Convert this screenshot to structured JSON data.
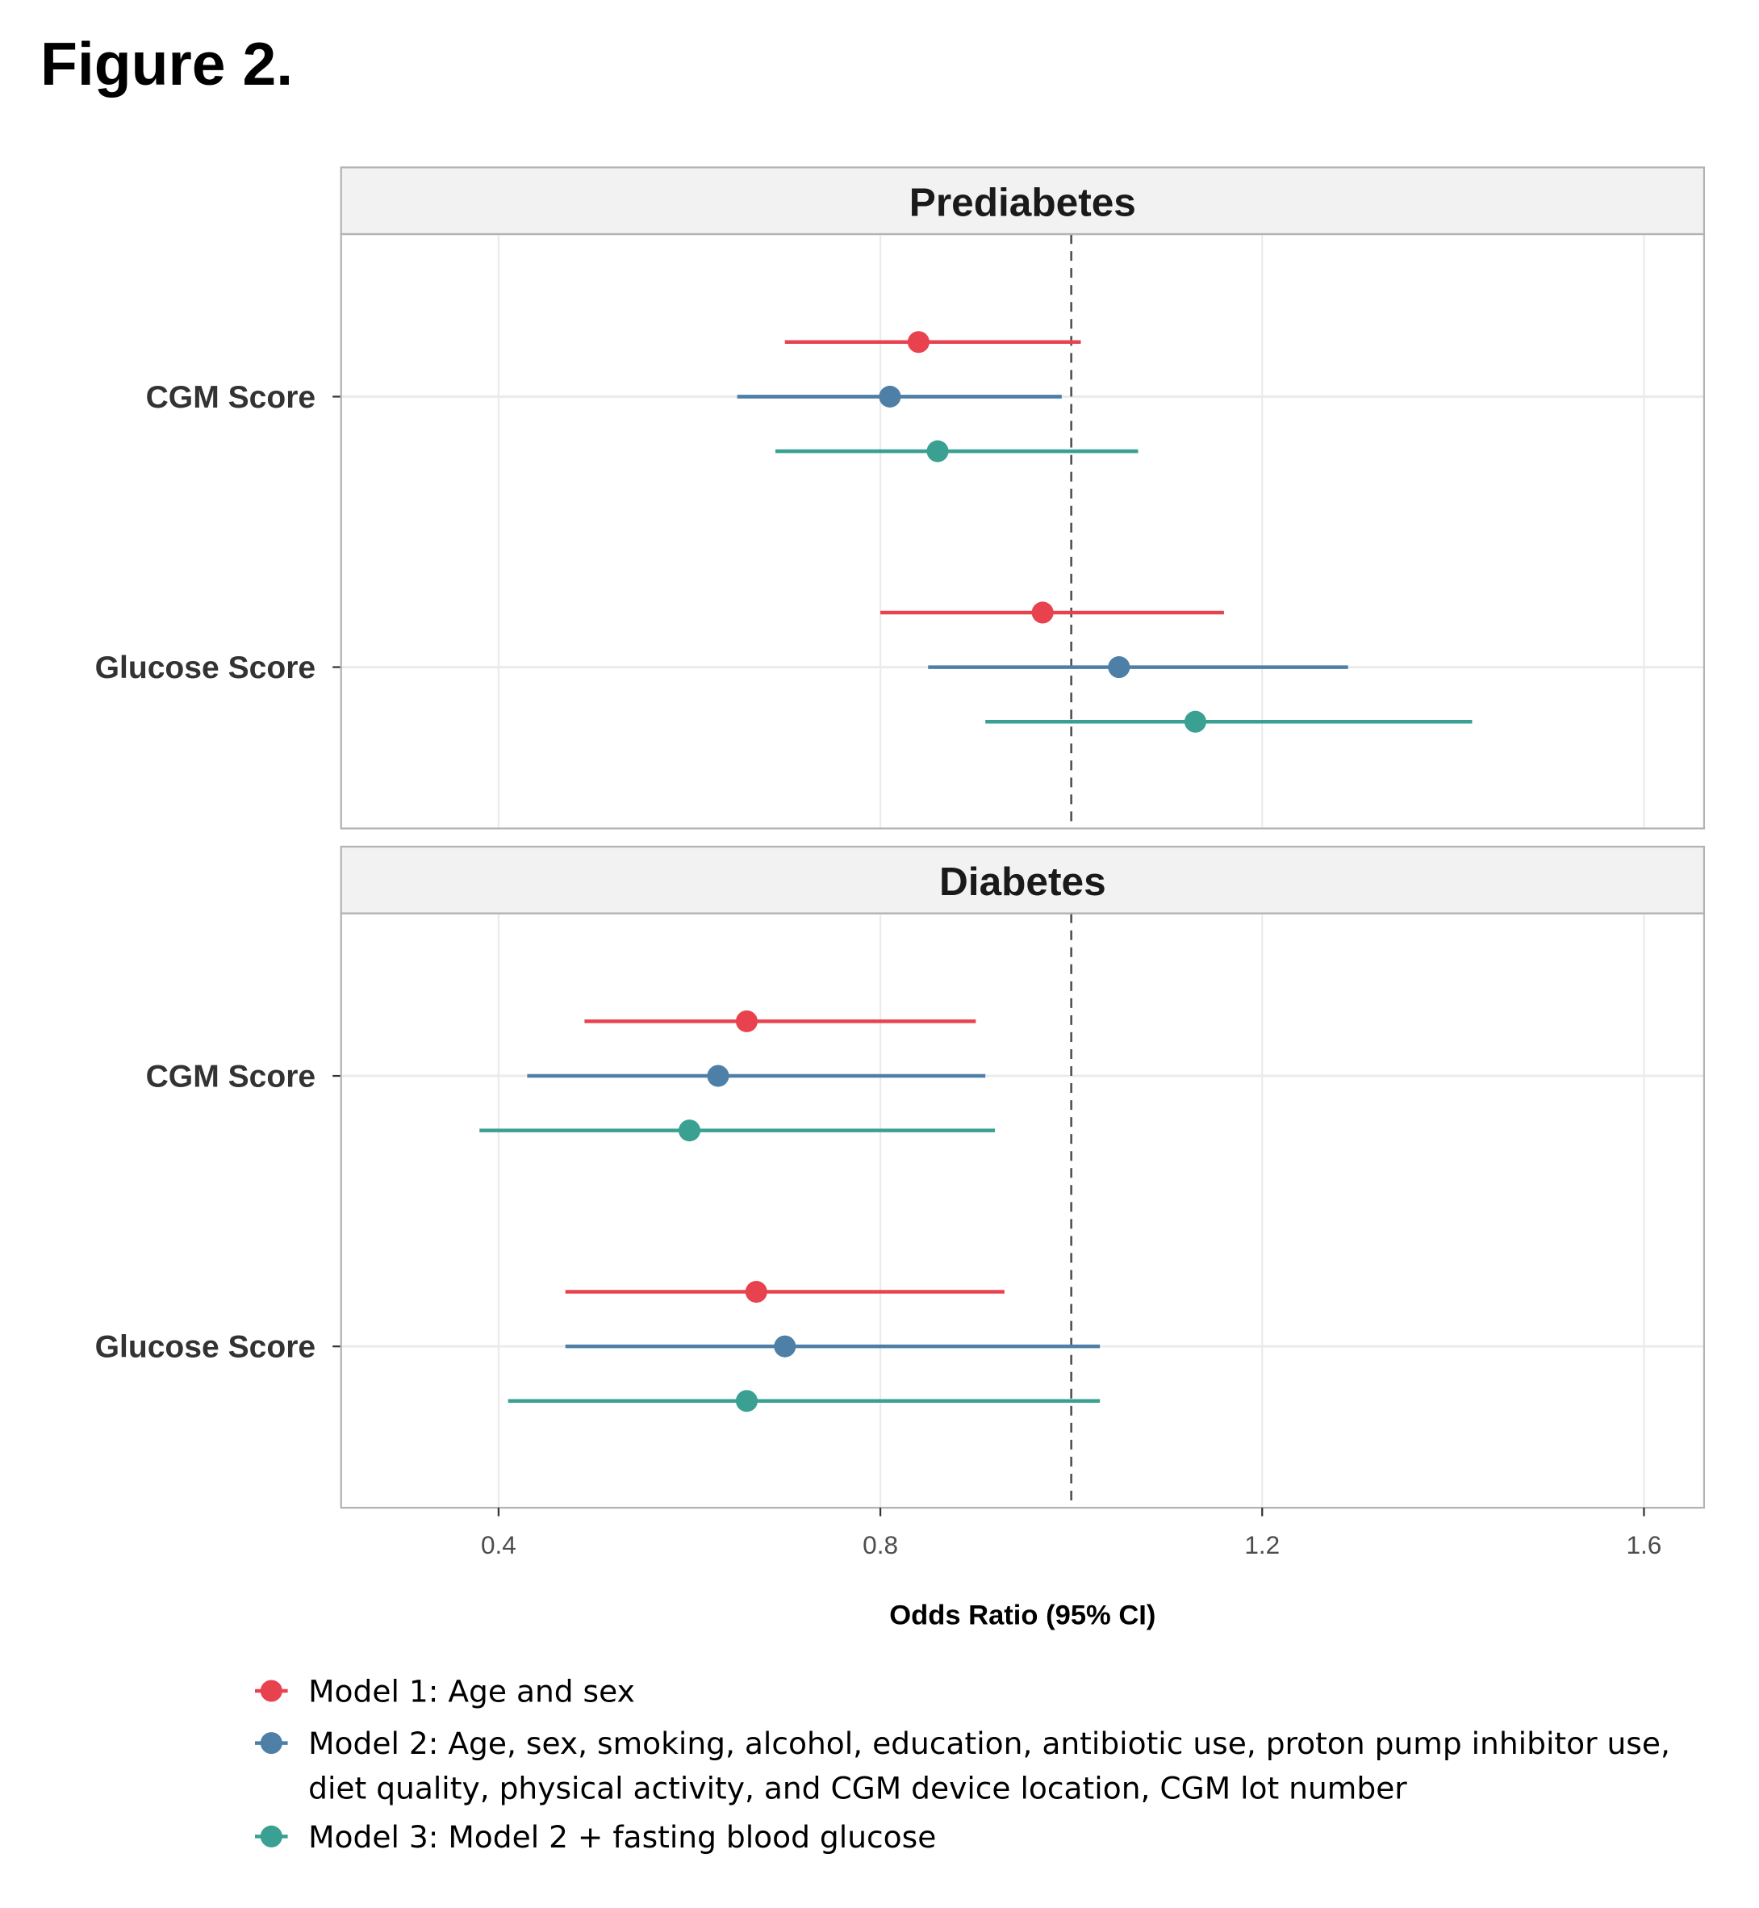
{
  "figure_label": "Figure 2.",
  "chart_data": {
    "type": "forest",
    "xlabel": "Odds Ratio (95% CI)",
    "xlim": [
      0.235,
      1.663
    ],
    "xticks": [
      0.4,
      0.8,
      1.2,
      1.6
    ],
    "xtick_labels": [
      "0.4",
      "0.8",
      "1.2",
      "1.6"
    ],
    "reference_line": 1.0,
    "grid": true,
    "legend_position": "bottom",
    "series": [
      {
        "name": "Model 1: Age and sex",
        "color": "#E8424F"
      },
      {
        "name": "Model 2: Age, sex, smoking, alcohol, education, antibiotic use, proton pump inhibitor use, diet quality, physical activity, and CGM device location, CGM lot number",
        "name_lines": [
          "Model 2: Age, sex, smoking, alcohol, education, antibiotic use, proton pump inhibitor use,",
          "diet quality, physical activity, and CGM device location, CGM lot number"
        ],
        "color": "#4E7FA6"
      },
      {
        "name": "Model 3: Model 2 + fasting blood glucose",
        "color": "#3AA091"
      }
    ],
    "panels": [
      {
        "title": "Prediabetes",
        "rows": [
          {
            "label": "CGM Score",
            "estimates": [
              {
                "or": 0.84,
                "lo": 0.7,
                "hi": 1.01
              },
              {
                "or": 0.81,
                "lo": 0.65,
                "hi": 0.99
              },
              {
                "or": 0.86,
                "lo": 0.69,
                "hi": 1.07
              }
            ]
          },
          {
            "label": "Glucose Score",
            "estimates": [
              {
                "or": 0.97,
                "lo": 0.8,
                "hi": 1.16
              },
              {
                "or": 1.05,
                "lo": 0.85,
                "hi": 1.29
              },
              {
                "or": 1.13,
                "lo": 0.91,
                "hi": 1.42
              }
            ]
          }
        ]
      },
      {
        "title": "Diabetes",
        "rows": [
          {
            "label": "CGM Score",
            "estimates": [
              {
                "or": 0.66,
                "lo": 0.49,
                "hi": 0.9
              },
              {
                "or": 0.63,
                "lo": 0.43,
                "hi": 0.91
              },
              {
                "or": 0.6,
                "lo": 0.38,
                "hi": 0.92
              }
            ]
          },
          {
            "label": "Glucose Score",
            "estimates": [
              {
                "or": 0.67,
                "lo": 0.47,
                "hi": 0.93
              },
              {
                "or": 0.7,
                "lo": 0.47,
                "hi": 1.03
              },
              {
                "or": 0.66,
                "lo": 0.41,
                "hi": 1.03
              }
            ]
          }
        ]
      }
    ]
  }
}
